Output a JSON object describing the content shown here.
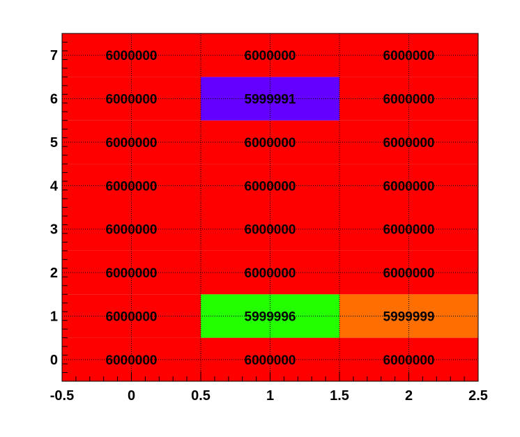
{
  "chart_data": {
    "type": "heatmap",
    "title": "",
    "xlabel": "",
    "ylabel": "",
    "xlim": [
      -0.5,
      2.5
    ],
    "ylim": [
      -0.5,
      7.5
    ],
    "x_ticks": [
      "-0.5",
      "0",
      "0.5",
      "1",
      "1.5",
      "2",
      "2.5"
    ],
    "y_ticks": [
      "0",
      "1",
      "2",
      "3",
      "4",
      "5",
      "6",
      "7"
    ],
    "x_tick_values": [
      -0.5,
      0,
      0.5,
      1,
      1.5,
      2,
      2.5
    ],
    "y_tick_values": [
      0,
      1,
      2,
      3,
      4,
      5,
      6,
      7
    ],
    "grid": true,
    "columns": [
      0,
      1,
      2
    ],
    "rows": [
      0,
      1,
      2,
      3,
      4,
      5,
      6,
      7
    ],
    "cells": [
      {
        "x": 0,
        "y": 0,
        "value": 6000000
      },
      {
        "x": 1,
        "y": 0,
        "value": 6000000
      },
      {
        "x": 2,
        "y": 0,
        "value": 6000000
      },
      {
        "x": 0,
        "y": 1,
        "value": 6000000
      },
      {
        "x": 1,
        "y": 1,
        "value": 5999996
      },
      {
        "x": 2,
        "y": 1,
        "value": 5999999
      },
      {
        "x": 0,
        "y": 2,
        "value": 6000000
      },
      {
        "x": 1,
        "y": 2,
        "value": 6000000
      },
      {
        "x": 2,
        "y": 2,
        "value": 6000000
      },
      {
        "x": 0,
        "y": 3,
        "value": 6000000
      },
      {
        "x": 1,
        "y": 3,
        "value": 6000000
      },
      {
        "x": 2,
        "y": 3,
        "value": 6000000
      },
      {
        "x": 0,
        "y": 4,
        "value": 6000000
      },
      {
        "x": 1,
        "y": 4,
        "value": 6000000
      },
      {
        "x": 2,
        "y": 4,
        "value": 6000000
      },
      {
        "x": 0,
        "y": 5,
        "value": 6000000
      },
      {
        "x": 1,
        "y": 5,
        "value": 6000000
      },
      {
        "x": 2,
        "y": 5,
        "value": 6000000
      },
      {
        "x": 0,
        "y": 6,
        "value": 6000000
      },
      {
        "x": 1,
        "y": 6,
        "value": 5999991
      },
      {
        "x": 2,
        "y": 6,
        "value": 6000000
      },
      {
        "x": 0,
        "y": 7,
        "value": 6000000
      },
      {
        "x": 1,
        "y": 7,
        "value": 6000000
      },
      {
        "x": 2,
        "y": 7,
        "value": 6000000
      }
    ],
    "value_colors": {
      "6000000": "#ff0000",
      "5999999": "#ff6e00",
      "5999996": "#24ff00",
      "5999991": "#6400ff"
    },
    "label_color": "#000000",
    "frame_color": "#000000",
    "background": "#ffffff"
  }
}
